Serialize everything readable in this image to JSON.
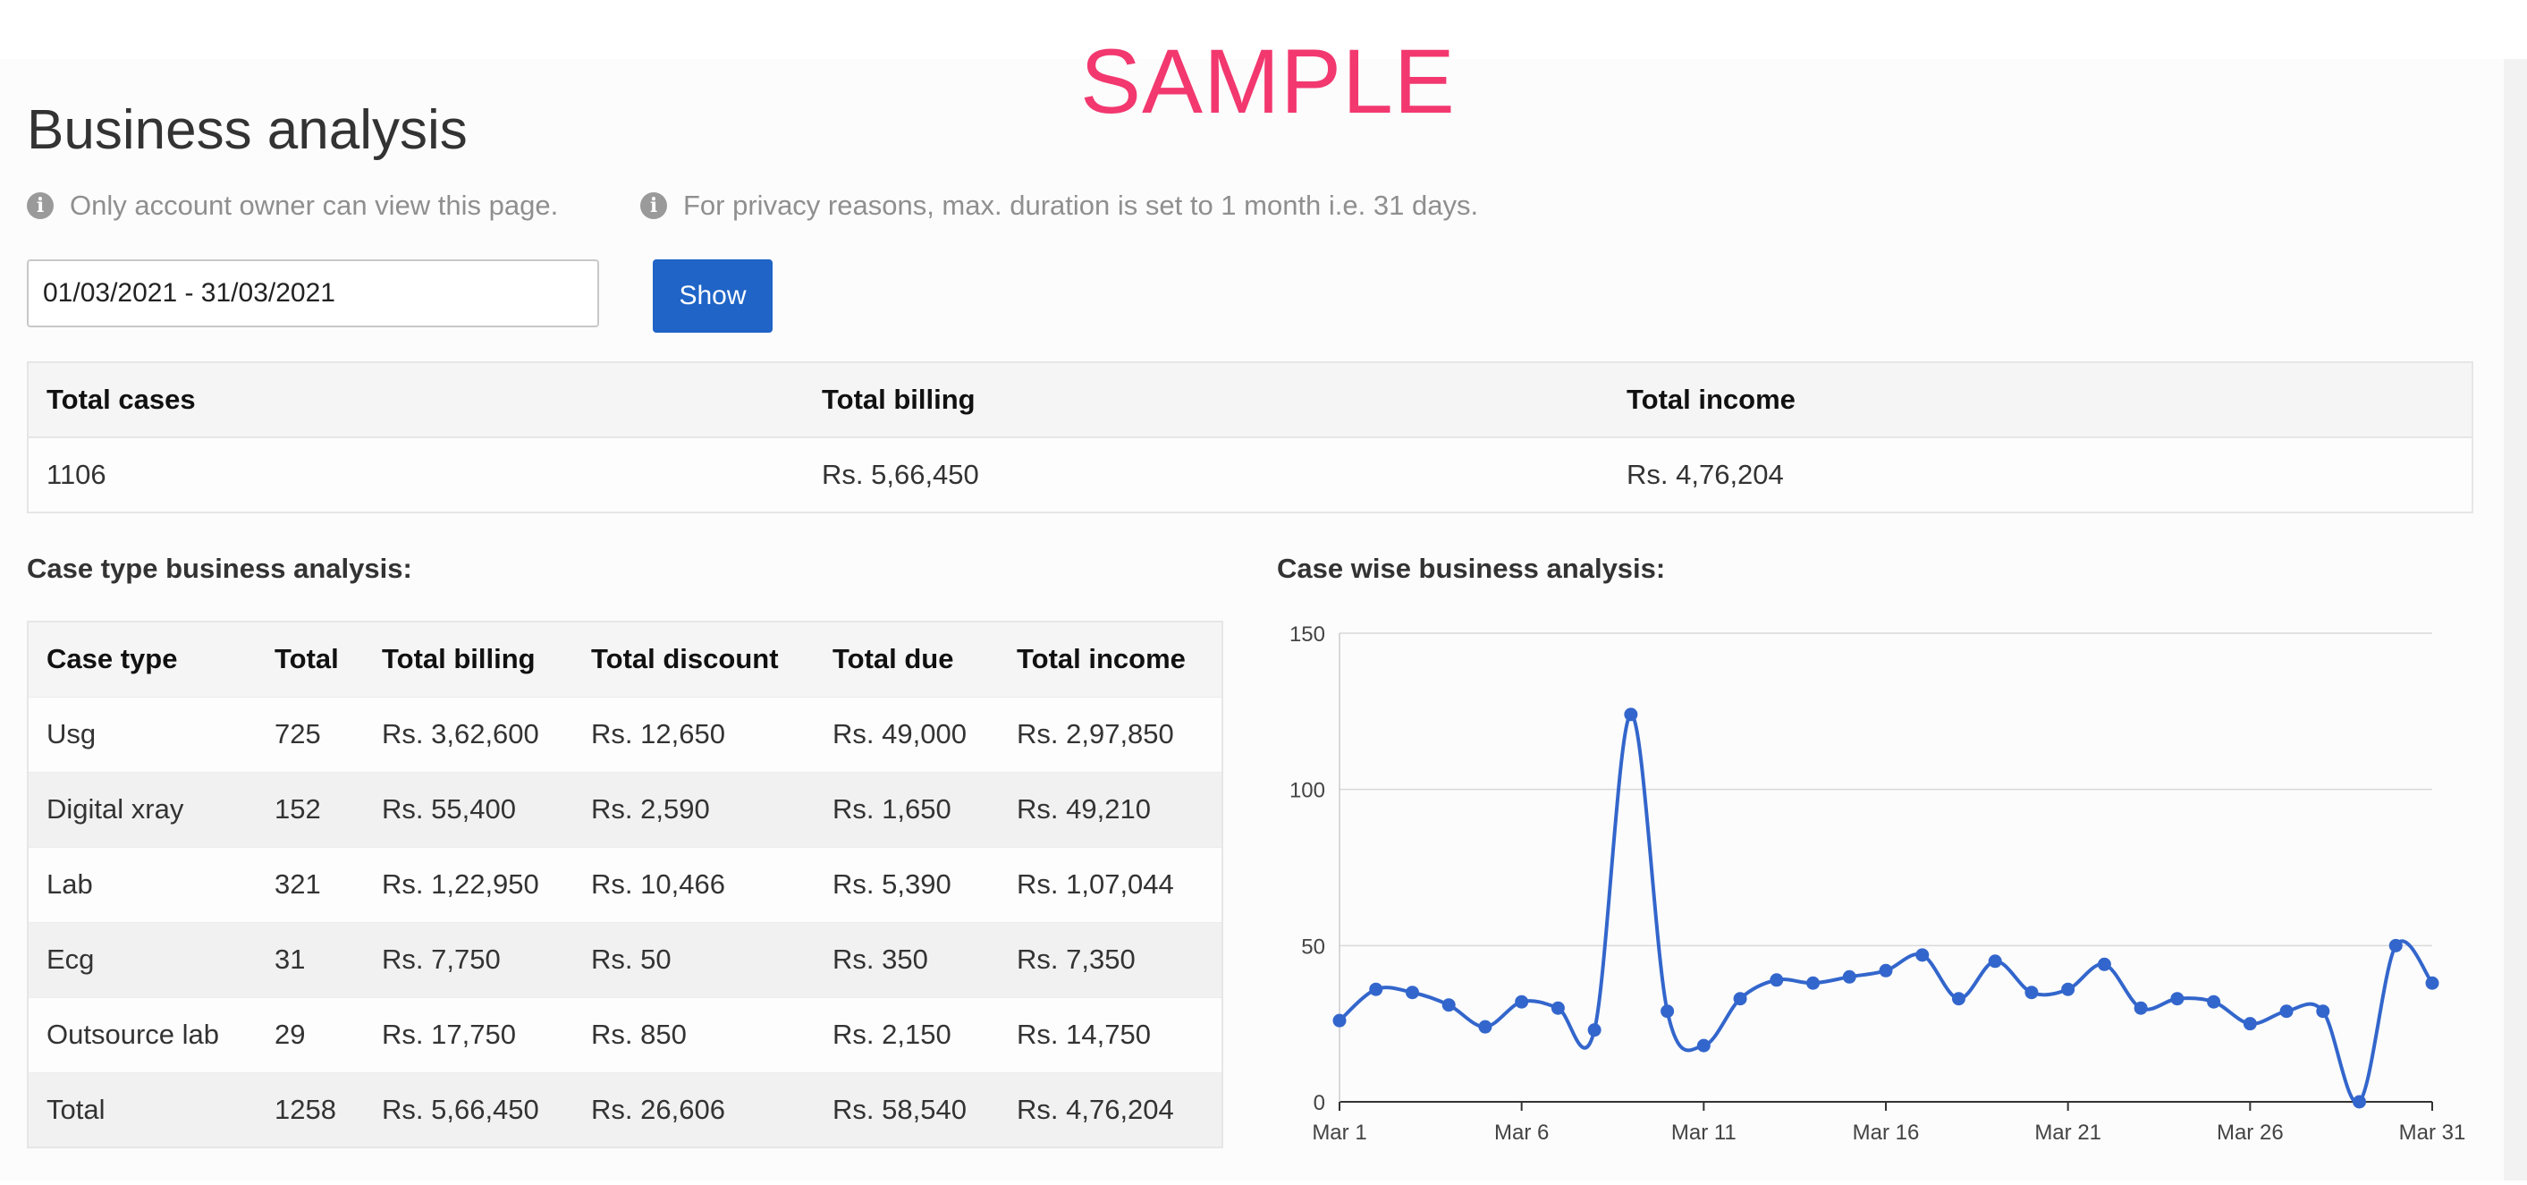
{
  "watermark": "SAMPLE",
  "page": {
    "title": "Business analysis",
    "notes": [
      {
        "icon": "info-icon",
        "text": "Only account owner can view this page."
      },
      {
        "icon": "info-icon",
        "text": "For privacy reasons, max. duration is set to 1 month i.e. 31 days."
      }
    ]
  },
  "filter": {
    "date_range": "01/03/2021 - 31/03/2021",
    "show_label": "Show"
  },
  "summary": {
    "headers": [
      "Total cases",
      "Total billing",
      "Total income"
    ],
    "values": [
      "1106",
      "Rs. 5,66,450",
      "Rs. 4,76,204"
    ]
  },
  "case_type": {
    "heading": "Case type business analysis:",
    "headers": [
      "Case type",
      "Total",
      "Total billing",
      "Total discount",
      "Total due",
      "Total income"
    ],
    "rows": [
      [
        "Usg",
        "725",
        "Rs. 3,62,600",
        "Rs. 12,650",
        "Rs. 49,000",
        "Rs. 2,97,850"
      ],
      [
        "Digital xray",
        "152",
        "Rs. 55,400",
        "Rs. 2,590",
        "Rs. 1,650",
        "Rs. 49,210"
      ],
      [
        "Lab",
        "321",
        "Rs. 1,22,950",
        "Rs. 10,466",
        "Rs. 5,390",
        "Rs. 1,07,044"
      ],
      [
        "Ecg",
        "31",
        "Rs. 7,750",
        "Rs. 50",
        "Rs. 350",
        "Rs. 7,350"
      ],
      [
        "Outsource lab",
        "29",
        "Rs. 17,750",
        "Rs. 850",
        "Rs. 2,150",
        "Rs. 14,750"
      ],
      [
        "Total",
        "1258",
        "Rs. 5,66,450",
        "Rs. 26,606",
        "Rs. 58,540",
        "Rs. 4,76,204"
      ]
    ]
  },
  "case_wise": {
    "heading": "Case wise business analysis:"
  },
  "colors": {
    "accent": "#1f64c6",
    "line": "#3366cc",
    "watermark": "#f2386f"
  },
  "chart_data": {
    "type": "line",
    "title": "",
    "xlabel": "",
    "ylabel": "",
    "x": [
      1,
      2,
      3,
      4,
      5,
      6,
      7,
      8,
      9,
      10,
      11,
      12,
      13,
      14,
      15,
      16,
      17,
      18,
      19,
      20,
      21,
      22,
      23,
      24,
      25,
      26,
      27,
      28,
      29,
      30,
      31
    ],
    "x_tick_labels": [
      {
        "day": 1,
        "label": "Mar 1"
      },
      {
        "day": 6,
        "label": "Mar 6"
      },
      {
        "day": 11,
        "label": "Mar 11"
      },
      {
        "day": 16,
        "label": "Mar 16"
      },
      {
        "day": 21,
        "label": "Mar 21"
      },
      {
        "day": 26,
        "label": "Mar 26"
      },
      {
        "day": 31,
        "label": "Mar 31"
      }
    ],
    "series": [
      {
        "values": [
          26,
          36,
          35,
          31,
          24,
          32,
          30,
          23,
          124,
          29,
          18,
          33,
          39,
          38,
          40,
          42,
          47,
          33,
          45,
          35,
          36,
          44,
          30,
          33,
          32,
          25,
          29,
          29,
          0,
          50,
          38
        ]
      }
    ],
    "ylim": [
      0,
      150
    ],
    "y_ticks": [
      0,
      50,
      100,
      150
    ],
    "grid": true,
    "smooth": true,
    "legend": "none"
  }
}
